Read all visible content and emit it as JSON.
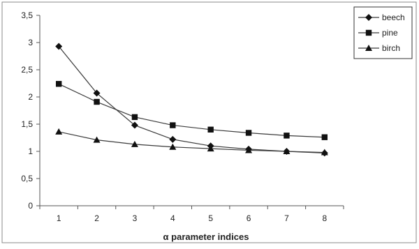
{
  "chart_data": {
    "type": "line",
    "title": "",
    "xlabel": "α parameter indices",
    "ylabel": "",
    "x": [
      1,
      2,
      3,
      4,
      5,
      6,
      7,
      8
    ],
    "y_ticks": [
      "0",
      "0,5",
      "1",
      "1,5",
      "2",
      "2,5",
      "3",
      "3,5"
    ],
    "ylim": [
      0,
      3.5
    ],
    "grid": false,
    "legend_position": "top-right",
    "series": [
      {
        "name": "beech",
        "marker": "diamond",
        "values": [
          2.93,
          2.07,
          1.48,
          1.22,
          1.1,
          1.04,
          1.0,
          0.97
        ]
      },
      {
        "name": "pine",
        "marker": "square",
        "values": [
          2.24,
          1.91,
          1.63,
          1.48,
          1.4,
          1.34,
          1.29,
          1.26
        ]
      },
      {
        "name": "birch",
        "marker": "triangle",
        "values": [
          1.36,
          1.21,
          1.13,
          1.08,
          1.05,
          1.02,
          1.0,
          0.98
        ]
      }
    ],
    "colors": {
      "line": "#3a3a3a",
      "marker": "#111111",
      "axis": "#555555",
      "frame": "#888888"
    }
  }
}
